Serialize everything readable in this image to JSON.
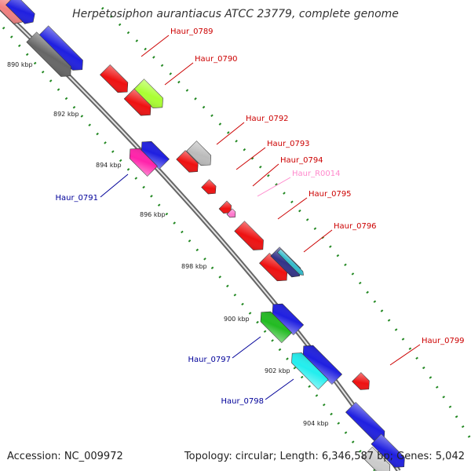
{
  "title": "Herpetosiphon aurantiacus ATCC 23779, complete genome",
  "footer": {
    "accession": "Accession: NC_009972",
    "summary": "Topology: circular; Length: 6,346,587 bp; Genes: 5,042"
  },
  "colors": {
    "forward_label": "#cc0000",
    "reverse_label": "#000099",
    "rna_label": "#ff88cc",
    "backbone": "#8c8c8c",
    "tick": "#228822"
  },
  "ticks": [
    {
      "id": "890",
      "label": "890 kbp"
    },
    {
      "id": "892",
      "label": "892 kbp"
    },
    {
      "id": "894",
      "label": "894 kbp"
    },
    {
      "id": "896",
      "label": "896 kbp"
    },
    {
      "id": "898",
      "label": "898 kbp"
    },
    {
      "id": "900",
      "label": "900 kbp"
    },
    {
      "id": "902",
      "label": "902 kbp"
    },
    {
      "id": "904",
      "label": "904 kbp"
    }
  ],
  "gene_labels": [
    {
      "id": "0789",
      "text": "Haur_0789",
      "strand": "forward"
    },
    {
      "id": "0790",
      "text": "Haur_0790",
      "strand": "forward"
    },
    {
      "id": "0791",
      "text": "Haur_0791",
      "strand": "reverse"
    },
    {
      "id": "0792",
      "text": "Haur_0792",
      "strand": "forward"
    },
    {
      "id": "0793",
      "text": "Haur_0793",
      "strand": "forward"
    },
    {
      "id": "0794",
      "text": "Haur_0794",
      "strand": "forward"
    },
    {
      "id": "R0014",
      "text": "Haur_R0014",
      "strand": "rna"
    },
    {
      "id": "0795",
      "text": "Haur_0795",
      "strand": "forward"
    },
    {
      "id": "0796",
      "text": "Haur_0796",
      "strand": "forward"
    },
    {
      "id": "0797",
      "text": "Haur_0797",
      "strand": "reverse"
    },
    {
      "id": "0798",
      "text": "Haur_0798",
      "strand": "reverse"
    },
    {
      "id": "0799",
      "text": "Haur_0799",
      "strand": "forward"
    }
  ]
}
